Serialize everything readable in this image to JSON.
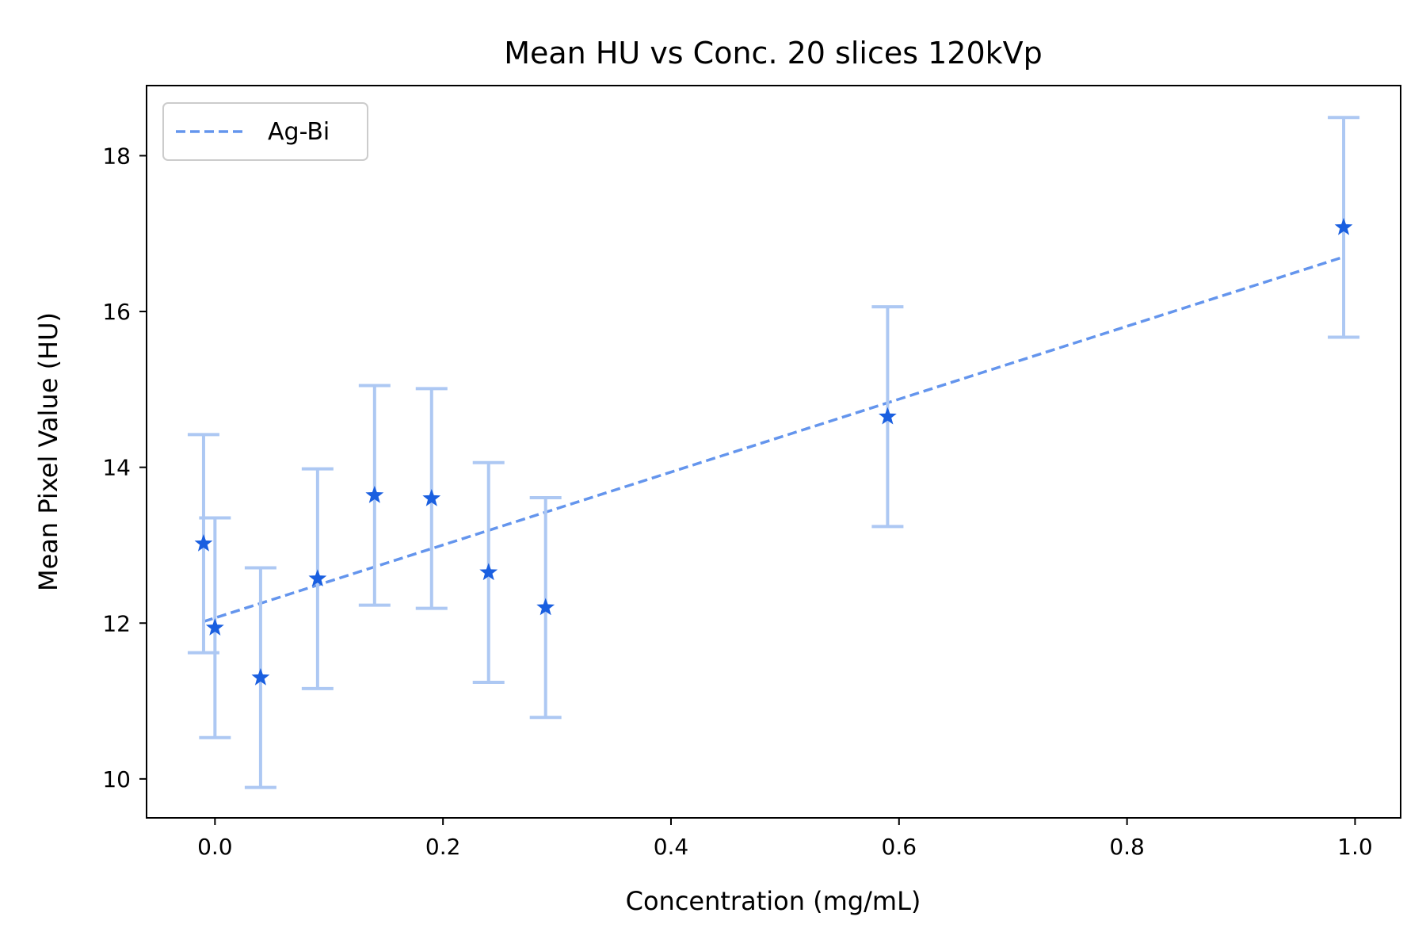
{
  "chart_data": {
    "type": "scatter",
    "title": "Mean HU vs Conc. 20 slices 120kVp",
    "xlabel": "Concentration (mg/mL)",
    "ylabel": "Mean Pixel Value (HU)",
    "xlim": [
      -0.06,
      1.04
    ],
    "ylim": [
      9.5,
      18.9
    ],
    "xticks": [
      0.0,
      0.2,
      0.4,
      0.6,
      0.8,
      1.0
    ],
    "xtick_labels": [
      "0.0",
      "0.2",
      "0.4",
      "0.6",
      "0.8",
      "1.0"
    ],
    "yticks": [
      10,
      12,
      14,
      16,
      18
    ],
    "ytick_labels": [
      "10",
      "12",
      "14",
      "16",
      "18"
    ],
    "grid": false,
    "legend": {
      "placement": "top-left",
      "entries": [
        "Ag-Bi"
      ]
    },
    "colors": {
      "marker": "#1a5fe0",
      "errorbar": "#adc8f3",
      "fit_line": "#6495ed"
    },
    "series": [
      {
        "name": "",
        "kind": "points",
        "marker": "star",
        "points": [
          {
            "x": -0.01,
            "y": 13.02,
            "yerr": 1.4
          },
          {
            "x": 0.0,
            "y": 11.94,
            "yerr": 1.41
          },
          {
            "x": 0.04,
            "y": 11.3,
            "yerr": 1.41
          },
          {
            "x": 0.09,
            "y": 12.57,
            "yerr": 1.41
          },
          {
            "x": 0.14,
            "y": 13.64,
            "yerr": 1.41
          },
          {
            "x": 0.19,
            "y": 13.6,
            "yerr": 1.41
          },
          {
            "x": 0.24,
            "y": 12.65,
            "yerr": 1.41
          },
          {
            "x": 0.29,
            "y": 12.2,
            "yerr": 1.41
          },
          {
            "x": 0.59,
            "y": 14.65,
            "yerr": 1.41
          },
          {
            "x": 0.99,
            "y": 17.08,
            "yerr": 1.41
          }
        ]
      },
      {
        "name": "Ag-Bi",
        "kind": "fit-line",
        "style": "dashed",
        "x": [
          -0.01,
          0.99
        ],
        "y": [
          12.02,
          16.7
        ]
      }
    ]
  }
}
